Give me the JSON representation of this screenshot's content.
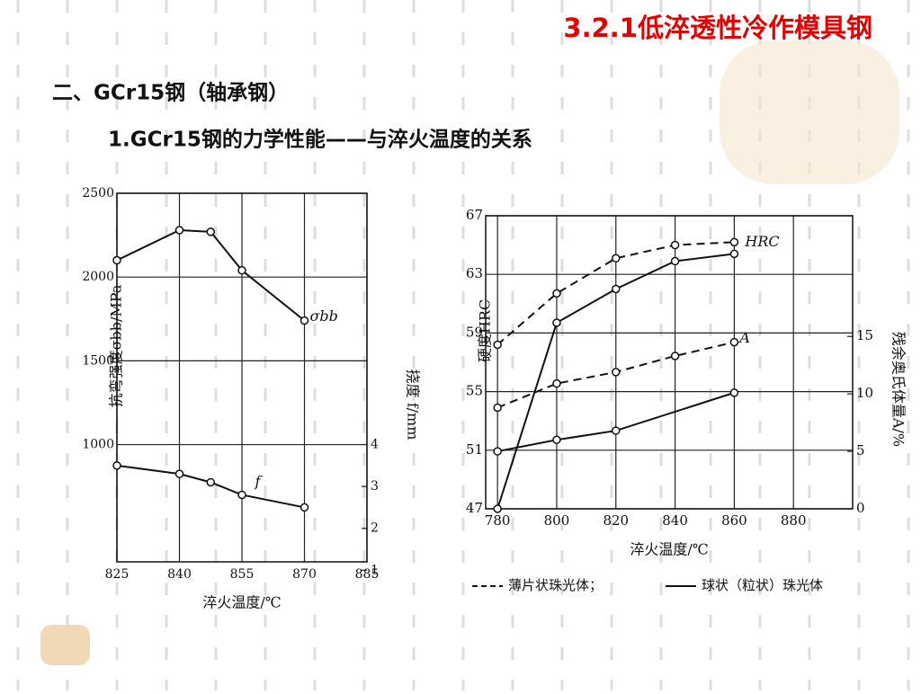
{
  "header": {
    "title": "3.2.1低淬透性冷作模具钢",
    "section": "二、GCr15钢（轴承钢）",
    "subtitle": "1.GCr15钢的力学性能——与淬火温度的关系"
  },
  "chart_data": [
    {
      "type": "line",
      "xlabel": "淬火温度/℃",
      "ylabel": "抗弯强度σbb/MPa",
      "y2label": "挠度 f/mm",
      "xlim": [
        825,
        885
      ],
      "xticks": [
        825,
        840,
        855,
        870,
        885
      ],
      "ylim": [
        300,
        2500
      ],
      "yticks": [
        1000,
        1500,
        2000,
        2500
      ],
      "y2lim": [
        1.2,
        10
      ],
      "y2ticks": [
        1,
        2,
        3,
        4
      ],
      "grid": true,
      "series": [
        {
          "label": "σbb",
          "color": "#111111",
          "dash": false,
          "x": [
            825,
            840,
            847.5,
            855,
            870
          ],
          "values": [
            2100,
            2280,
            2270,
            2040,
            1740
          ]
        },
        {
          "label": "f",
          "color": "#111111",
          "dash": false,
          "axis": "y2",
          "x": [
            825,
            840,
            847.5,
            855,
            870
          ],
          "values": [
            3.5,
            3.3,
            3.1,
            2.8,
            2.5
          ]
        }
      ]
    },
    {
      "type": "line",
      "xlabel": "淬火温度/℃",
      "ylabel": "硬度HRC",
      "y2label": "残余奥氏体量A/%",
      "xlim": [
        776,
        900
      ],
      "xticks": [
        780,
        800,
        820,
        840,
        860,
        880
      ],
      "ylim": [
        47,
        67
      ],
      "yticks": [
        47,
        51,
        55,
        59,
        63,
        67
      ],
      "y2lim": [
        0,
        25.5
      ],
      "y2ticks": [
        0,
        5,
        10,
        15
      ],
      "grid": true,
      "series": [
        {
          "label": "HRC",
          "color": "#111111",
          "dash": true,
          "x": [
            780,
            800,
            820,
            840,
            860
          ],
          "values": [
            58.2,
            61.7,
            64.1,
            65.0,
            65.2
          ]
        },
        {
          "color": "#111111",
          "dash": false,
          "x": [
            780,
            800,
            820,
            840,
            860
          ],
          "values": [
            47,
            59.7,
            62.0,
            63.9,
            64.4
          ]
        },
        {
          "label": "A",
          "color": "#111111",
          "dash": true,
          "axis": "y2",
          "x": [
            780,
            800,
            820,
            840,
            860
          ],
          "values": [
            8.8,
            10.9,
            11.9,
            13.3,
            14.5
          ]
        },
        {
          "color": "#111111",
          "dash": false,
          "axis": "y2",
          "x": [
            780,
            800,
            820,
            860
          ],
          "values": [
            5.0,
            6.0,
            6.8,
            10.1
          ]
        }
      ],
      "legend": [
        {
          "label": "薄片状珠光体；",
          "dash": true
        },
        {
          "label": "球状（粒状）珠光体",
          "dash": false
        }
      ]
    }
  ]
}
